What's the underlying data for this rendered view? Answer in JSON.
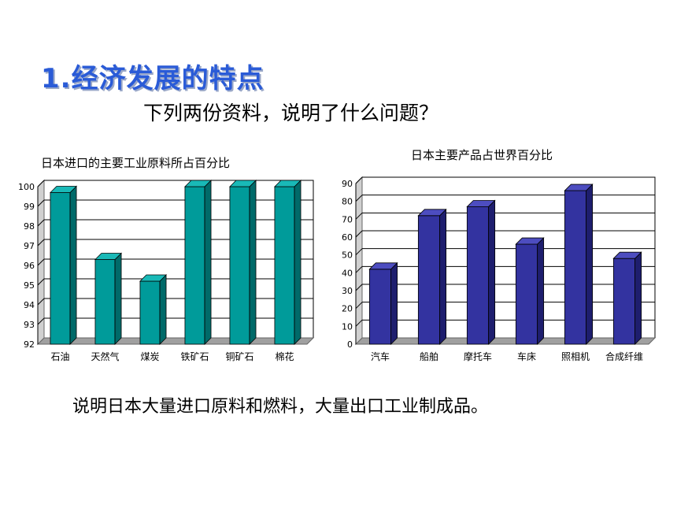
{
  "page": {
    "title": "1.经济发展的特点",
    "subtitle": "下列两份资料，说明了什么问题？",
    "conclusion": "说明日本大量进口原料和燃料，大量出口工业制成品。"
  },
  "chart_data": [
    {
      "type": "bar",
      "title": "日本进口的主要工业原料所占百分比",
      "categories": [
        "石油",
        "天然气",
        "煤炭",
        "铁矿石",
        "铜矿石",
        "棉花"
      ],
      "values": [
        99.7,
        96.3,
        95.2,
        100,
        100,
        100
      ],
      "ylim": [
        92,
        100
      ],
      "yticks": [
        92,
        93,
        94,
        95,
        96,
        97,
        98,
        99,
        100
      ],
      "grid": true,
      "legend": "none",
      "colors": {
        "front": "#009b9a",
        "side": "#006a69",
        "top": "#19b9b7"
      }
    },
    {
      "type": "bar",
      "title": "日本主要产品占世界百分比",
      "categories": [
        "汽车",
        "船舶",
        "摩托车",
        "车床",
        "照相机",
        "合成纤维"
      ],
      "values": [
        42,
        72,
        77,
        56,
        86,
        48
      ],
      "ylim": [
        0,
        90
      ],
      "yticks": [
        0,
        10,
        20,
        30,
        40,
        50,
        60,
        70,
        80,
        90
      ],
      "grid": true,
      "legend": "none",
      "colors": {
        "front": "#3333a0",
        "side": "#1e1e6e",
        "top": "#4d4dc0"
      }
    }
  ]
}
